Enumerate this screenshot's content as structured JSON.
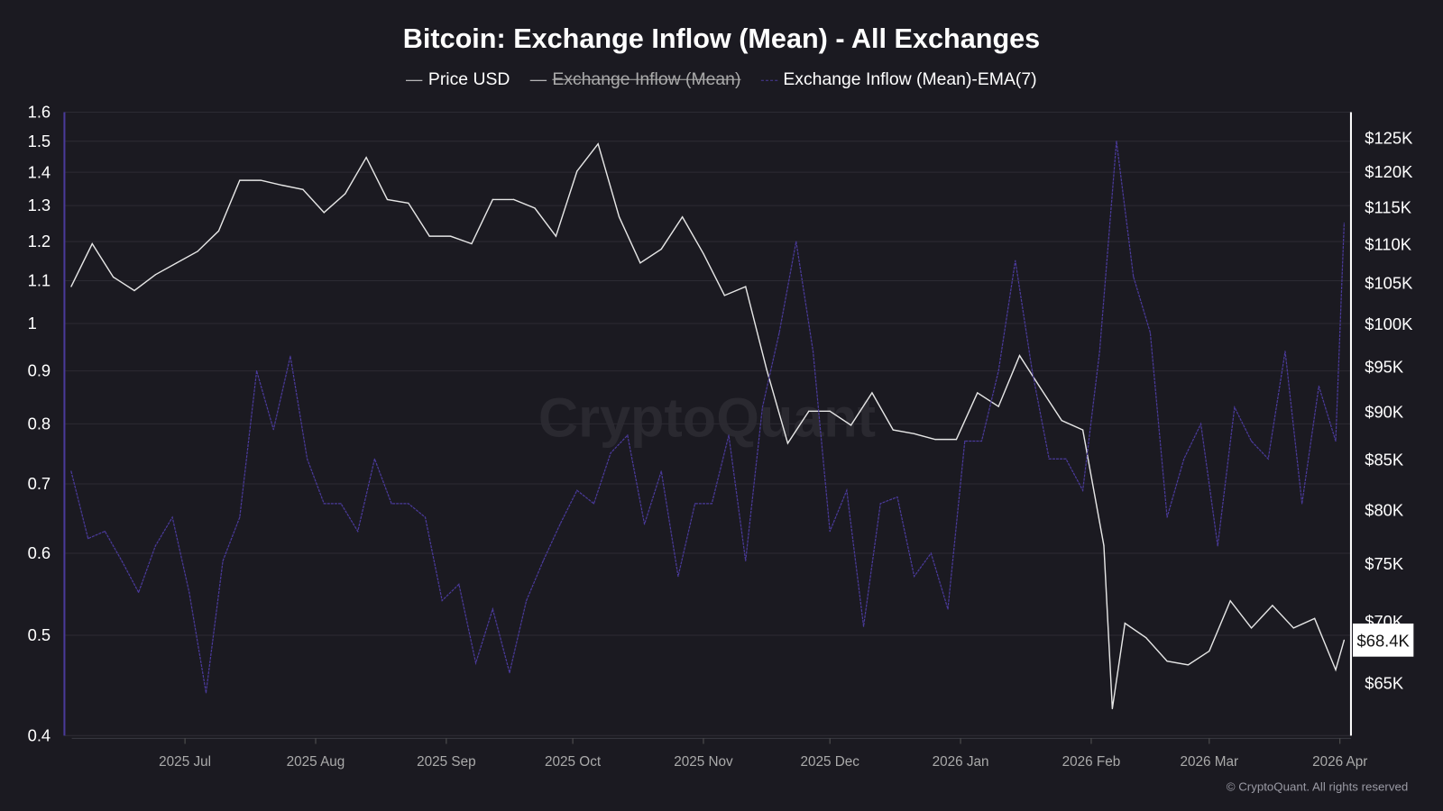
{
  "chart_data": {
    "type": "line",
    "title": "Bitcoin: Exchange Inflow (Mean) - All Exchanges",
    "legend": [
      {
        "label": "Price USD",
        "color": "#e0e0e0",
        "hidden": false
      },
      {
        "label": "Exchange Inflow (Mean)",
        "color": "#e0e0e0",
        "hidden": true
      },
      {
        "label": "Exchange Inflow (Mean)-EMA(7)",
        "color": "#4a3a9a",
        "hidden": false
      }
    ],
    "legend_position": "top",
    "watermark": "CryptoQuant",
    "copyright": "© CryptoQuant. All rights reserved",
    "x_ticks": [
      {
        "date": "2025-07-01",
        "label": "2025 Jul"
      },
      {
        "date": "2025-08-01",
        "label": "2025 Aug"
      },
      {
        "date": "2025-09-01",
        "label": "2025 Sep"
      },
      {
        "date": "2025-10-01",
        "label": "2025 Oct"
      },
      {
        "date": "2025-11-01",
        "label": "2025 Nov"
      },
      {
        "date": "2025-12-01",
        "label": "2025 Dec"
      },
      {
        "date": "2026-01-01",
        "label": "2026 Jan"
      },
      {
        "date": "2026-02-01",
        "label": "2026 Feb"
      },
      {
        "date": "2026-03-01",
        "label": "2026 Mar"
      },
      {
        "date": "2026-04-01",
        "label": "2026 Apr"
      }
    ],
    "x_range": [
      "2025-06-04",
      "2026-04-02"
    ],
    "left_axis": {
      "scale": "log",
      "range": [
        0.4,
        1.6
      ],
      "ticks": [
        "0.4",
        "0.5",
        "0.6",
        "0.7",
        "0.8",
        "0.9",
        "1",
        "1.1",
        "1.2",
        "1.3",
        "1.4",
        "1.5",
        "1.6"
      ]
    },
    "right_axis": {
      "scale": "log",
      "range": [
        61000,
        128800
      ],
      "ticks": [
        {
          "value": 65000,
          "label": "$65K"
        },
        {
          "value": 70000,
          "label": "$70K"
        },
        {
          "value": 75000,
          "label": "$75K"
        },
        {
          "value": 80000,
          "label": "$80K"
        },
        {
          "value": 85000,
          "label": "$85K"
        },
        {
          "value": 90000,
          "label": "$90K"
        },
        {
          "value": 95000,
          "label": "$95K"
        },
        {
          "value": 100000,
          "label": "$100K"
        },
        {
          "value": 105000,
          "label": "$105K"
        },
        {
          "value": 110000,
          "label": "$110K"
        },
        {
          "value": 115000,
          "label": "$115K"
        },
        {
          "value": 120000,
          "label": "$120K"
        },
        {
          "value": 125000,
          "label": "$125K"
        }
      ]
    },
    "current_price_label": "$68.4K",
    "current_price": 68400,
    "grid": true,
    "series": [
      {
        "name": "Price USD",
        "axis": "right",
        "color": "#e6e6e6",
        "points": [
          [
            "2025-06-04",
            104500
          ],
          [
            "2025-06-09",
            110000
          ],
          [
            "2025-06-14",
            105700
          ],
          [
            "2025-06-19",
            104000
          ],
          [
            "2025-06-24",
            106000
          ],
          [
            "2025-06-29",
            107500
          ],
          [
            "2025-07-04",
            109000
          ],
          [
            "2025-07-09",
            111700
          ],
          [
            "2025-07-14",
            118700
          ],
          [
            "2025-07-19",
            118700
          ],
          [
            "2025-07-24",
            118000
          ],
          [
            "2025-07-29",
            117400
          ],
          [
            "2025-08-03",
            114200
          ],
          [
            "2025-08-08",
            116800
          ],
          [
            "2025-08-13",
            122000
          ],
          [
            "2025-08-18",
            116000
          ],
          [
            "2025-08-23",
            115500
          ],
          [
            "2025-08-28",
            111000
          ],
          [
            "2025-09-02",
            111000
          ],
          [
            "2025-09-07",
            110000
          ],
          [
            "2025-09-12",
            116000
          ],
          [
            "2025-09-17",
            116000
          ],
          [
            "2025-09-22",
            114800
          ],
          [
            "2025-09-27",
            111000
          ],
          [
            "2025-10-02",
            120000
          ],
          [
            "2025-10-07",
            124000
          ],
          [
            "2025-10-12",
            113600
          ],
          [
            "2025-10-17",
            107500
          ],
          [
            "2025-10-22",
            109300
          ],
          [
            "2025-10-27",
            113600
          ],
          [
            "2025-11-01",
            108700
          ],
          [
            "2025-11-06",
            103400
          ],
          [
            "2025-11-11",
            104500
          ],
          [
            "2025-11-16",
            94600
          ],
          [
            "2025-11-21",
            86600
          ],
          [
            "2025-11-26",
            90000
          ],
          [
            "2025-12-01",
            90000
          ],
          [
            "2025-12-06",
            88500
          ],
          [
            "2025-12-11",
            92000
          ],
          [
            "2025-12-16",
            88000
          ],
          [
            "2025-12-21",
            87600
          ],
          [
            "2025-12-26",
            87000
          ],
          [
            "2025-12-31",
            87000
          ],
          [
            "2026-01-05",
            92000
          ],
          [
            "2026-01-10",
            90500
          ],
          [
            "2026-01-15",
            96200
          ],
          [
            "2026-01-20",
            92500
          ],
          [
            "2026-01-25",
            89000
          ],
          [
            "2026-01-30",
            88000
          ],
          [
            "2026-02-04",
            76600
          ],
          [
            "2026-02-06",
            63000
          ],
          [
            "2026-02-09",
            69800
          ],
          [
            "2026-02-14",
            68600
          ],
          [
            "2026-02-19",
            66700
          ],
          [
            "2026-02-24",
            66400
          ],
          [
            "2026-03-01",
            67500
          ],
          [
            "2026-03-06",
            71700
          ],
          [
            "2026-03-11",
            69400
          ],
          [
            "2026-03-16",
            71300
          ],
          [
            "2026-03-21",
            69400
          ],
          [
            "2026-03-26",
            70200
          ],
          [
            "2026-03-31",
            66000
          ],
          [
            "2026-04-02",
            68400
          ]
        ]
      },
      {
        "name": "Exchange Inflow (Mean)-EMA(7)",
        "axis": "left",
        "color": "#4a3a9a",
        "points": [
          [
            "2025-06-04",
            0.72
          ],
          [
            "2025-06-08",
            0.62
          ],
          [
            "2025-06-12",
            0.63
          ],
          [
            "2025-06-16",
            0.59
          ],
          [
            "2025-06-20",
            0.55
          ],
          [
            "2025-06-24",
            0.61
          ],
          [
            "2025-06-28",
            0.65
          ],
          [
            "2025-07-02",
            0.55
          ],
          [
            "2025-07-06",
            0.44
          ],
          [
            "2025-07-10",
            0.59
          ],
          [
            "2025-07-14",
            0.65
          ],
          [
            "2025-07-18",
            0.9
          ],
          [
            "2025-07-22",
            0.79
          ],
          [
            "2025-07-26",
            0.93
          ],
          [
            "2025-07-30",
            0.74
          ],
          [
            "2025-08-03",
            0.67
          ],
          [
            "2025-08-07",
            0.67
          ],
          [
            "2025-08-11",
            0.63
          ],
          [
            "2025-08-15",
            0.74
          ],
          [
            "2025-08-19",
            0.67
          ],
          [
            "2025-08-23",
            0.67
          ],
          [
            "2025-08-27",
            0.65
          ],
          [
            "2025-08-31",
            0.54
          ],
          [
            "2025-09-04",
            0.56
          ],
          [
            "2025-09-08",
            0.47
          ],
          [
            "2025-09-12",
            0.53
          ],
          [
            "2025-09-16",
            0.46
          ],
          [
            "2025-09-20",
            0.54
          ],
          [
            "2025-09-24",
            0.59
          ],
          [
            "2025-09-28",
            0.64
          ],
          [
            "2025-10-02",
            0.69
          ],
          [
            "2025-10-06",
            0.67
          ],
          [
            "2025-10-10",
            0.75
          ],
          [
            "2025-10-14",
            0.78
          ],
          [
            "2025-10-18",
            0.64
          ],
          [
            "2025-10-22",
            0.72
          ],
          [
            "2025-10-26",
            0.57
          ],
          [
            "2025-10-30",
            0.67
          ],
          [
            "2025-11-03",
            0.67
          ],
          [
            "2025-11-07",
            0.78
          ],
          [
            "2025-11-11",
            0.59
          ],
          [
            "2025-11-15",
            0.83
          ],
          [
            "2025-11-19",
            0.98
          ],
          [
            "2025-11-23",
            1.2
          ],
          [
            "2025-11-27",
            0.94
          ],
          [
            "2025-12-01",
            0.63
          ],
          [
            "2025-12-05",
            0.69
          ],
          [
            "2025-12-09",
            0.51
          ],
          [
            "2025-12-13",
            0.67
          ],
          [
            "2025-12-17",
            0.68
          ],
          [
            "2025-12-21",
            0.57
          ],
          [
            "2025-12-25",
            0.6
          ],
          [
            "2025-12-29",
            0.53
          ],
          [
            "2026-01-02",
            0.77
          ],
          [
            "2026-01-06",
            0.77
          ],
          [
            "2026-01-10",
            0.9
          ],
          [
            "2026-01-14",
            1.15
          ],
          [
            "2026-01-18",
            0.9
          ],
          [
            "2026-01-22",
            0.74
          ],
          [
            "2026-01-26",
            0.74
          ],
          [
            "2026-01-30",
            0.69
          ],
          [
            "2026-02-03",
            0.94
          ],
          [
            "2026-02-07",
            1.5
          ],
          [
            "2026-02-11",
            1.11
          ],
          [
            "2026-02-15",
            0.98
          ],
          [
            "2026-02-19",
            0.65
          ],
          [
            "2026-02-23",
            0.74
          ],
          [
            "2026-02-27",
            0.8
          ],
          [
            "2026-03-03",
            0.61
          ],
          [
            "2026-03-07",
            0.83
          ],
          [
            "2026-03-11",
            0.77
          ],
          [
            "2026-03-15",
            0.74
          ],
          [
            "2026-03-19",
            0.94
          ],
          [
            "2026-03-23",
            0.67
          ],
          [
            "2026-03-27",
            0.87
          ],
          [
            "2026-03-31",
            0.77
          ],
          [
            "2026-04-02",
            1.25
          ]
        ]
      }
    ]
  }
}
